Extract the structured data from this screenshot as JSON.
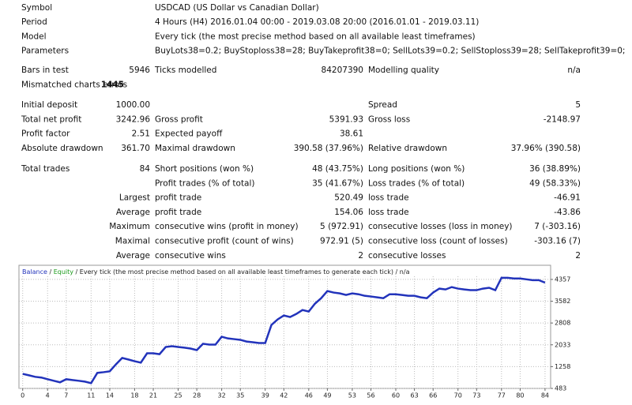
{
  "summary": {
    "rows": [
      {
        "label": "Symbol",
        "text": "USDCAD (US Dollar vs Canadian Dollar)"
      },
      {
        "label": "Period",
        "text": "4 Hours (H4) 2016.01.04 00:00 - 2019.03.08 20:00 (2016.01.01 - 2019.03.11)"
      },
      {
        "label": "Model",
        "text": "Every tick (the most precise method based on all available least timeframes)"
      },
      {
        "label": "Parameters",
        "text": "BuyLots38=0.2; BuyStoploss38=28; BuyTakeprofit38=0; SellLots39=0.2; SellStoploss39=28; SellTakeprofit39=0;"
      }
    ]
  },
  "stats": {
    "groups": [
      [
        [
          "Bars in test",
          "5946",
          "Ticks modelled",
          "84207390",
          "Modelling quality",
          "n/a"
        ],
        [
          "Mismatched charts errors",
          "1445",
          null,
          null,
          null,
          null
        ]
      ],
      [
        [
          "Initial deposit",
          "1000.00",
          null,
          null,
          "Spread",
          "5"
        ],
        [
          "Total net profit",
          "3242.96",
          "Gross profit",
          "5391.93",
          "Gross loss",
          "-2148.97"
        ],
        [
          "Profit factor",
          "2.51",
          "Expected payoff",
          "38.61",
          null,
          null
        ],
        [
          "Absolute drawdown",
          "361.70",
          "Maximal drawdown",
          "390.58 (37.96%)",
          "Relative drawdown",
          "37.96% (390.58)"
        ]
      ],
      [
        [
          "Total trades",
          "84",
          "Short positions (won %)",
          "48 (43.75%)",
          "Long positions (won %)",
          "36 (38.89%)"
        ],
        [
          null,
          null,
          "Profit trades (% of total)",
          "35 (41.67%)",
          "Loss trades (% of total)",
          "49 (58.33%)"
        ],
        [
          null,
          "Largest",
          "profit trade",
          "520.49",
          "loss trade",
          "-46.91"
        ],
        [
          null,
          "Average",
          "profit trade",
          "154.06",
          "loss trade",
          "-43.86"
        ],
        [
          null,
          "Maximum",
          "consecutive wins (profit in money)",
          "5 (972.91)",
          "consecutive losses (loss in money)",
          "7 (-303.16)"
        ],
        [
          null,
          "Maximal",
          "consecutive profit (count of wins)",
          "972.91 (5)",
          "consecutive loss (count of losses)",
          "-303.16 (7)"
        ],
        [
          null,
          "Average",
          "consecutive wins",
          "2",
          "consecutive losses",
          "2"
        ]
      ]
    ]
  },
  "chart_data": {
    "type": "line",
    "separator": "/",
    "equity_label": "Equity",
    "equity_color": "#1a9a1a",
    "subtitle": "Every tick (the most precise method based on all available least timeframes to generate each tick)",
    "note": "n/a",
    "x": [
      0,
      1,
      2,
      3,
      4,
      5,
      6,
      7,
      8,
      9,
      10,
      11,
      12,
      13,
      14,
      15,
      16,
      17,
      18,
      19,
      20,
      21,
      22,
      23,
      24,
      25,
      26,
      27,
      28,
      29,
      30,
      31,
      32,
      33,
      34,
      35,
      36,
      37,
      38,
      39,
      40,
      41,
      42,
      43,
      44,
      45,
      46,
      47,
      48,
      49,
      50,
      51,
      52,
      53,
      54,
      55,
      56,
      57,
      58,
      59,
      60,
      61,
      62,
      63,
      64,
      65,
      66,
      67,
      68,
      69,
      70,
      71,
      72,
      73,
      74,
      75,
      76,
      77,
      78,
      79,
      80,
      81,
      82,
      83,
      84
    ],
    "series": [
      {
        "name": "Balance",
        "color": "#2233bb",
        "values": [
          1000,
          950,
          895,
          870,
          810,
          755,
          700,
          810,
          780,
          755,
          725,
          670,
          1035,
          1060,
          1090,
          1340,
          1565,
          1510,
          1450,
          1400,
          1730,
          1730,
          1700,
          1955,
          1985,
          1955,
          1930,
          1900,
          1845,
          2070,
          2040,
          2040,
          2320,
          2260,
          2235,
          2210,
          2150,
          2125,
          2095,
          2095,
          2740,
          2935,
          3075,
          3020,
          3130,
          3270,
          3215,
          3495,
          3690,
          3945,
          3890,
          3860,
          3805,
          3860,
          3830,
          3775,
          3750,
          3720,
          3690,
          3830,
          3830,
          3805,
          3775,
          3775,
          3720,
          3690,
          3890,
          4030,
          4000,
          4085,
          4030,
          4000,
          3975,
          3975,
          4030,
          4060,
          3975,
          4415,
          4415,
          4390,
          4390,
          4360,
          4330,
          4330,
          4243
        ]
      }
    ],
    "xlim": [
      -0.6,
      84.9
    ],
    "xticks": [
      0,
      4,
      7,
      11,
      14,
      18,
      21,
      25,
      28,
      32,
      35,
      39,
      42,
      46,
      49,
      53,
      56,
      60,
      63,
      66,
      70,
      73,
      77,
      80,
      84
    ],
    "ylim": [
      483,
      4860
    ],
    "yticks": [
      483,
      1258,
      2033,
      2808,
      3582,
      4357
    ],
    "grid": true
  }
}
